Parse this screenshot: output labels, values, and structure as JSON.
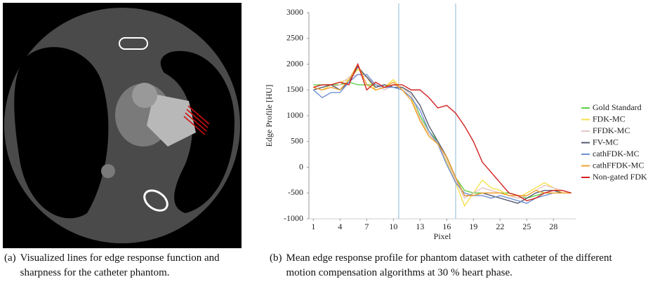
{
  "chart_data": {
    "type": "line",
    "y_label": "Edge Profile [HU]",
    "x_label": "Pixel",
    "x": [
      1,
      2,
      3,
      4,
      5,
      6,
      7,
      8,
      9,
      10,
      11,
      12,
      13,
      14,
      15,
      16,
      17,
      18,
      19,
      20,
      21,
      22,
      23,
      24,
      25,
      26,
      27,
      28,
      29,
      30
    ],
    "xlim": [
      0.5,
      30.5
    ],
    "xticks": [
      1,
      4,
      7,
      10,
      13,
      16,
      19,
      22,
      25,
      28
    ],
    "ylim": [
      -1000,
      3000
    ],
    "yticks": [
      -1000,
      -500,
      0,
      500,
      1000,
      1500,
      2000,
      2500,
      3000
    ],
    "vlines": [
      10.6,
      17
    ],
    "vline_color": "#9cc3dc",
    "series": [
      {
        "name": "Gold Standard",
        "color": "#5fcf45",
        "values": [
          1600,
          1600,
          1600,
          1600,
          1650,
          1600,
          1600,
          1600,
          1550,
          1600,
          1550,
          1400,
          1000,
          700,
          500,
          200,
          -200,
          -450,
          -500,
          -500,
          -500,
          -500,
          -500,
          -550,
          -600,
          -550,
          -500,
          -500,
          -500,
          -500
        ]
      },
      {
        "name": "FDK-MC",
        "color": "#f5e04a",
        "values": [
          1550,
          1500,
          1600,
          1650,
          1700,
          1900,
          1750,
          1500,
          1550,
          1700,
          1500,
          1350,
          900,
          650,
          450,
          100,
          -300,
          -750,
          -500,
          -250,
          -400,
          -450,
          -550,
          -600,
          -500,
          -400,
          -300,
          -400,
          -500,
          -500
        ]
      },
      {
        "name": "FFDK-MC",
        "color": "#e6c6c6",
        "values": [
          1550,
          1500,
          1550,
          1600,
          1750,
          1800,
          1750,
          1600,
          1500,
          1600,
          1550,
          1400,
          950,
          650,
          450,
          150,
          -250,
          -600,
          -500,
          -400,
          -450,
          -500,
          -550,
          -600,
          -550,
          -450,
          -350,
          -400,
          -450,
          -500
        ]
      },
      {
        "name": "FV-MC",
        "color": "#565a72",
        "values": [
          1500,
          1550,
          1600,
          1500,
          1650,
          1950,
          1750,
          1550,
          1600,
          1550,
          1550,
          1450,
          1200,
          800,
          500,
          200,
          -200,
          -550,
          -550,
          -500,
          -550,
          -600,
          -650,
          -700,
          -600,
          -500,
          -450,
          -450,
          -500,
          -500
        ]
      },
      {
        "name": "cathFDK-MC",
        "color": "#7090d2",
        "values": [
          1500,
          1350,
          1450,
          1450,
          1650,
          1800,
          1800,
          1600,
          1550,
          1550,
          1500,
          1350,
          1100,
          700,
          450,
          50,
          -300,
          -500,
          -550,
          -550,
          -600,
          -550,
          -600,
          -650,
          -700,
          -600,
          -550,
          -500,
          -500,
          -500
        ]
      },
      {
        "name": "cathFFDK-MC",
        "color": "#f0a030",
        "values": [
          1550,
          1500,
          1550,
          1500,
          1700,
          2000,
          1600,
          1500,
          1550,
          1650,
          1500,
          1300,
          900,
          600,
          450,
          200,
          -200,
          -550,
          -550,
          -500,
          -500,
          -500,
          -550,
          -550,
          -550,
          -450,
          -500,
          -500,
          -500,
          -500
        ]
      },
      {
        "name": "Non-gated FDK",
        "color": "#d42020",
        "values": [
          1550,
          1600,
          1600,
          1650,
          1600,
          2000,
          1500,
          1650,
          1550,
          1600,
          1600,
          1500,
          1500,
          1350,
          1150,
          1200,
          1050,
          800,
          500,
          100,
          -100,
          -300,
          -500,
          -550,
          -650,
          -600,
          -500,
          -450,
          -450,
          -500
        ]
      }
    ]
  },
  "captions": [
    {
      "label": "(a)",
      "text": "Visualized lines for edge response function and sharpness for the catheter phantom."
    },
    {
      "label": "(b)",
      "text": "Mean edge response profile for phantom dataset with catheter of the different motion compensation algorithms at 30 % heart phase."
    }
  ]
}
